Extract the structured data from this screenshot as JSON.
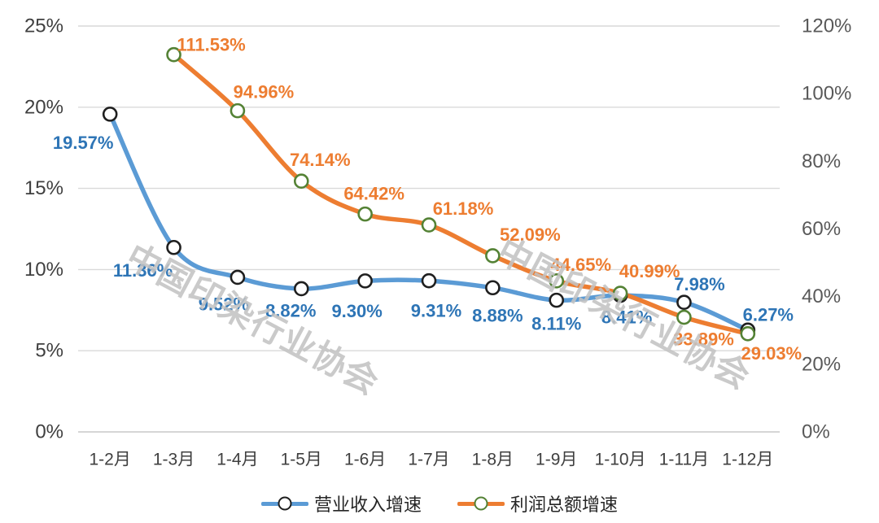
{
  "chart_data": {
    "type": "line",
    "title": "",
    "categories": [
      "1-2月",
      "1-3月",
      "1-4月",
      "1-5月",
      "1-6月",
      "1-7月",
      "1-8月",
      "1-9月",
      "1-10月",
      "1-11月",
      "1-12月"
    ],
    "series": [
      {
        "name": "营业收入增速",
        "axis": "left",
        "color": "#5B9BD5",
        "label_color": "#2E75B6",
        "marker_edge": "#1f1f1f",
        "values": [
          19.57,
          11.36,
          9.52,
          8.82,
          9.3,
          9.31,
          8.88,
          8.11,
          8.41,
          7.98,
          6.27
        ],
        "labels": [
          "19.57%",
          "11.36%",
          "9.52%",
          "8.82%",
          "9.30%",
          "9.31%",
          "8.88%",
          "8.11%",
          "8.41%",
          "7.98%",
          "6.27%"
        ],
        "label_offsets": [
          [
            -33,
            35
          ],
          [
            -38,
            28
          ],
          [
            -17,
            33
          ],
          [
            -13,
            27
          ],
          [
            -10,
            37
          ],
          [
            9,
            37
          ],
          [
            6,
            34
          ],
          [
            0,
            29
          ],
          [
            8,
            27
          ],
          [
            19,
            -22
          ],
          [
            25,
            -19
          ]
        ]
      },
      {
        "name": "利润总额增速",
        "axis": "right",
        "color": "#ED7D31",
        "label_color": "#ED7D31",
        "marker_edge": "#548235",
        "values": [
          null,
          111.53,
          94.96,
          74.14,
          64.42,
          61.18,
          52.09,
          44.65,
          40.99,
          33.89,
          29.03
        ],
        "labels": [
          null,
          "111.53%",
          "94.96%",
          "74.14%",
          "64.42%",
          "61.18%",
          "52.09%",
          "44.65%",
          "40.99%",
          "33.89%",
          "29.03%"
        ],
        "label_offsets": [
          null,
          [
            46,
            -12
          ],
          [
            32,
            -23
          ],
          [
            23,
            -26
          ],
          [
            11,
            -25
          ],
          [
            42,
            -20
          ],
          [
            46,
            -26
          ],
          [
            30,
            -20
          ],
          [
            36,
            -27
          ],
          [
            24,
            27
          ],
          [
            29,
            24
          ]
        ]
      }
    ],
    "left_axis": {
      "min": 0,
      "max": 25,
      "tick_values": [
        25,
        20,
        15,
        10,
        5,
        0
      ],
      "tick_labels": [
        "25%",
        "20%",
        "15%",
        "10%",
        "5%",
        "0%"
      ]
    },
    "right_axis": {
      "min": 0,
      "max": 120,
      "tick_values": [
        120,
        100,
        80,
        60,
        40,
        20,
        0
      ],
      "tick_labels": [
        "120%",
        "100%",
        "80%",
        "60%",
        "40%",
        "20%",
        "0%"
      ]
    },
    "grid": true,
    "legend_position": "bottom",
    "colors": {
      "gridline": "#D9D9D9",
      "axis_line": "#C9C9C9",
      "left_tick_text": "#3f3f3f",
      "right_tick_text": "#595959",
      "x_tick_text": "#3f3f3f"
    }
  },
  "watermark": {
    "text": "中国印染行业协会"
  }
}
